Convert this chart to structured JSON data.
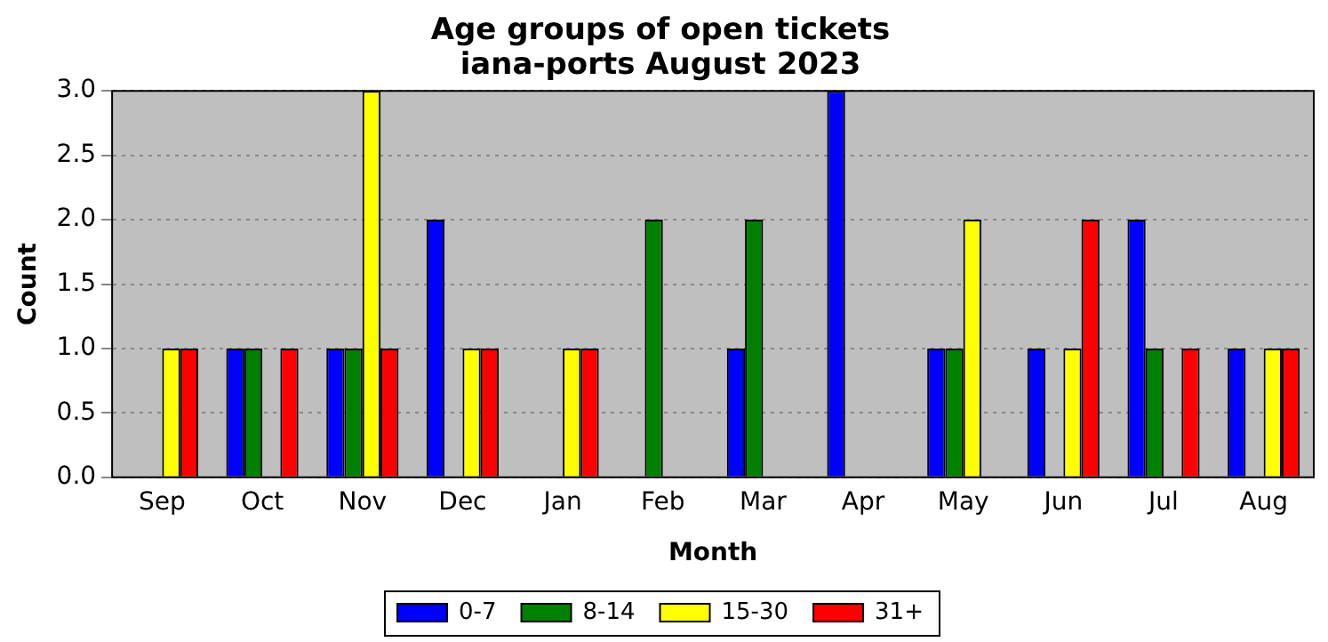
{
  "chart_data": {
    "type": "bar",
    "title": "Age groups of open tickets\niana-ports August 2023",
    "xlabel": "Month",
    "ylabel": "Count",
    "categories": [
      "Sep",
      "Oct",
      "Nov",
      "Dec",
      "Jan",
      "Feb",
      "Mar",
      "Apr",
      "May",
      "Jun",
      "Jul",
      "Aug"
    ],
    "series": [
      {
        "name": "0-7",
        "color": "#0000ff",
        "values": [
          0,
          1,
          1,
          2,
          0,
          0,
          1,
          3,
          1,
          1,
          2,
          1
        ]
      },
      {
        "name": "8-14",
        "color": "#008000",
        "values": [
          0,
          1,
          1,
          0,
          0,
          2,
          2,
          0,
          1,
          0,
          1,
          0
        ]
      },
      {
        "name": "15-30",
        "color": "#ffff00",
        "values": [
          1,
          0,
          3,
          1,
          1,
          0,
          0,
          0,
          2,
          1,
          0,
          1
        ]
      },
      {
        "name": "31+",
        "color": "#ff0000",
        "values": [
          1,
          1,
          1,
          1,
          1,
          0,
          0,
          0,
          0,
          2,
          1,
          1
        ]
      }
    ],
    "ylim": [
      0,
      3
    ],
    "yticks": [
      {
        "value": 0,
        "label": "0.0"
      },
      0.5,
      {
        "value": 1,
        "label": "1.0"
      },
      1.5,
      {
        "value": 2,
        "label": "2.0"
      },
      2.5,
      {
        "value": 3,
        "label": "3.0"
      }
    ],
    "grid": "y",
    "legend": "bottom"
  }
}
